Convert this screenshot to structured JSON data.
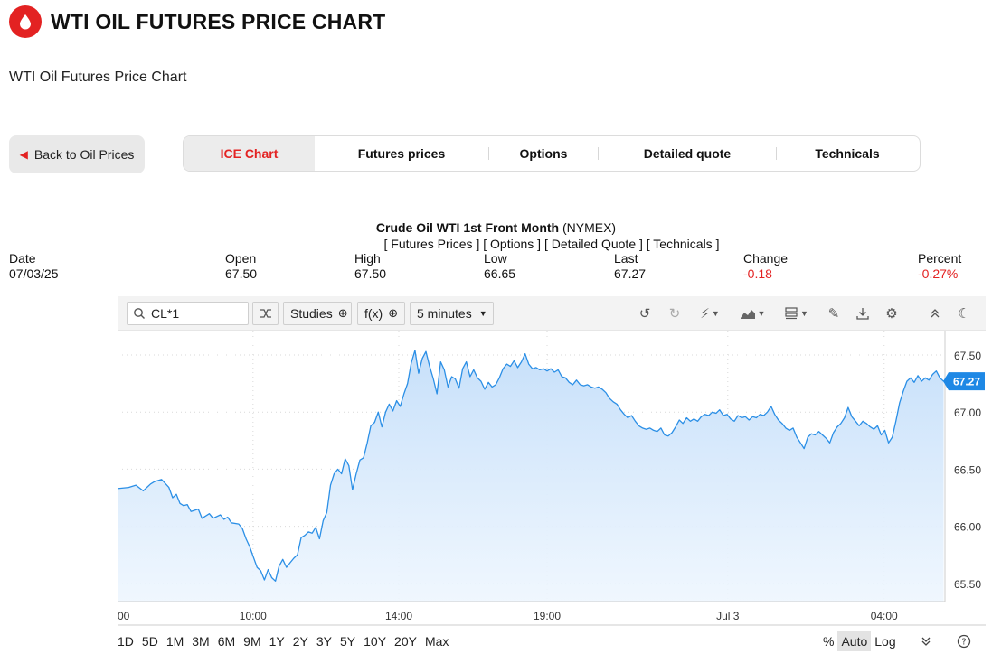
{
  "header": {
    "title": "WTI OIL FUTURES PRICE CHART",
    "subtitle": "WTI Oil Futures Price Chart"
  },
  "back_button": {
    "label": "Back to Oil Prices"
  },
  "tabs": [
    {
      "label": "ICE Chart",
      "active": true
    },
    {
      "label": "Futures prices",
      "active": false
    },
    {
      "label": "Options",
      "active": false
    },
    {
      "label": "Detailed quote",
      "active": false
    },
    {
      "label": "Technicals",
      "active": false
    }
  ],
  "instrument": {
    "name": "Crude Oil WTI 1st Front Month",
    "exchange": "(NYMEX)"
  },
  "links": [
    "[ Futures Prices ]",
    "[ Options ]",
    "[ Detailed Quote ]",
    "[ Technicals ]"
  ],
  "quote": {
    "date": {
      "label": "Date",
      "value": "07/03/25"
    },
    "open": {
      "label": "Open",
      "value": "67.50"
    },
    "high": {
      "label": "High",
      "value": "67.50"
    },
    "low": {
      "label": "Low",
      "value": "66.65"
    },
    "last": {
      "label": "Last",
      "value": "67.27"
    },
    "change": {
      "label": "Change",
      "value": "-0.18"
    },
    "percent": {
      "label": "Percent",
      "value": "-0.27%"
    }
  },
  "toolbar": {
    "symbol": "CL*1",
    "studies_label": "Studies",
    "fx_label": "f(x)",
    "interval_label": "5 minutes",
    "icons": [
      "undo-icon",
      "redo-icon",
      "lightning-icon",
      "chart-type-icon",
      "layout-icon",
      "draw-icon",
      "download-icon",
      "settings-icon",
      "collapse-icon",
      "dark-mode-icon"
    ]
  },
  "range_buttons": [
    "1D",
    "5D",
    "1M",
    "3M",
    "6M",
    "9M",
    "1Y",
    "2Y",
    "3Y",
    "5Y",
    "10Y",
    "20Y",
    "Max"
  ],
  "scale_buttons": [
    {
      "label": "%",
      "active": false
    },
    {
      "label": "Auto",
      "active": true
    },
    {
      "label": "Log",
      "active": false
    }
  ],
  "colors": {
    "accent": "#e32222",
    "line": "#2b8fe6",
    "fill": "#cfe4fa",
    "badge": "#1e88e5"
  },
  "chart_data": {
    "type": "area",
    "title": "Crude Oil WTI 1st Front Month",
    "x_tick_labels": [
      "00",
      "10:00",
      "14:00",
      "19:00",
      "Jul 3",
      "04:00"
    ],
    "x_tick_positions": [
      0,
      36.9,
      76.6,
      117.0,
      166.2,
      208.8
    ],
    "y_ticks": [
      65.5,
      66.0,
      66.5,
      67.0,
      67.5
    ],
    "y_tick_labels": [
      "65.50",
      "66.00",
      "66.50",
      "67.00",
      "67.50"
    ],
    "ylim": [
      65.4,
      67.6
    ],
    "xlim": [
      0,
      230
    ],
    "last_value_label": "67.27",
    "last_value": 67.27,
    "series": [
      {
        "values": [
          [
            0,
            66.33
          ],
          [
            3,
            66.34
          ],
          [
            5,
            66.36
          ],
          [
            7,
            66.31
          ],
          [
            9,
            66.37
          ],
          [
            10,
            66.39
          ],
          [
            12,
            66.41
          ],
          [
            14,
            66.34
          ],
          [
            15,
            66.25
          ],
          [
            16,
            66.28
          ],
          [
            17,
            66.2
          ],
          [
            18,
            66.18
          ],
          [
            19,
            66.19
          ],
          [
            20,
            66.13
          ],
          [
            22,
            66.15
          ],
          [
            23,
            66.07
          ],
          [
            25,
            66.11
          ],
          [
            26,
            66.07
          ],
          [
            28,
            66.1
          ],
          [
            29,
            66.06
          ],
          [
            30,
            66.08
          ],
          [
            31,
            66.03
          ],
          [
            33,
            66.02
          ],
          [
            34,
            65.98
          ],
          [
            35,
            65.89
          ],
          [
            36,
            65.82
          ],
          [
            37,
            65.73
          ],
          [
            38,
            65.64
          ],
          [
            39,
            65.61
          ],
          [
            40,
            65.53
          ],
          [
            41,
            65.62
          ],
          [
            42,
            65.55
          ],
          [
            43,
            65.52
          ],
          [
            44,
            65.65
          ],
          [
            45,
            65.71
          ],
          [
            46,
            65.64
          ],
          [
            47,
            65.68
          ],
          [
            48,
            65.72
          ],
          [
            49,
            65.75
          ],
          [
            50,
            65.9
          ],
          [
            51,
            65.92
          ],
          [
            52,
            65.95
          ],
          [
            53,
            65.94
          ],
          [
            54,
            65.99
          ],
          [
            55,
            65.89
          ],
          [
            56,
            66.05
          ],
          [
            57,
            66.12
          ],
          [
            58,
            66.36
          ],
          [
            59,
            66.46
          ],
          [
            60,
            66.5
          ],
          [
            61,
            66.46
          ],
          [
            62,
            66.59
          ],
          [
            63,
            66.53
          ],
          [
            64,
            66.32
          ],
          [
            65,
            66.46
          ],
          [
            66,
            66.58
          ],
          [
            67,
            66.6
          ],
          [
            68,
            66.73
          ],
          [
            69,
            66.88
          ],
          [
            70,
            66.91
          ],
          [
            71,
            67.0
          ],
          [
            72,
            66.87
          ],
          [
            73,
            67.0
          ],
          [
            74,
            67.07
          ],
          [
            75,
            67.01
          ],
          [
            76,
            67.1
          ],
          [
            77,
            67.05
          ],
          [
            78,
            67.16
          ],
          [
            79,
            67.25
          ],
          [
            80,
            67.43
          ],
          [
            81,
            67.54
          ],
          [
            82,
            67.34
          ],
          [
            83,
            67.47
          ],
          [
            84,
            67.53
          ],
          [
            85,
            67.4
          ],
          [
            86,
            67.29
          ],
          [
            87,
            67.16
          ],
          [
            88,
            67.44
          ],
          [
            89,
            67.37
          ],
          [
            90,
            67.22
          ],
          [
            91,
            67.31
          ],
          [
            92,
            67.29
          ],
          [
            93,
            67.21
          ],
          [
            94,
            67.38
          ],
          [
            95,
            67.44
          ],
          [
            96,
            67.31
          ],
          [
            97,
            67.37
          ],
          [
            98,
            67.3
          ],
          [
            99,
            67.27
          ],
          [
            100,
            67.2
          ],
          [
            101,
            67.26
          ],
          [
            102,
            67.22
          ],
          [
            103,
            67.24
          ],
          [
            104,
            67.3
          ],
          [
            105,
            67.38
          ],
          [
            106,
            67.42
          ],
          [
            107,
            67.4
          ],
          [
            108,
            67.45
          ],
          [
            109,
            67.39
          ],
          [
            110,
            67.44
          ],
          [
            111,
            67.51
          ],
          [
            112,
            67.42
          ],
          [
            113,
            67.38
          ],
          [
            114,
            67.39
          ],
          [
            115,
            67.37
          ],
          [
            116,
            67.38
          ],
          [
            117,
            67.36
          ],
          [
            118,
            67.38
          ],
          [
            119,
            67.35
          ],
          [
            120,
            67.37
          ],
          [
            121,
            67.31
          ],
          [
            122,
            67.3
          ],
          [
            123,
            67.26
          ],
          [
            124,
            67.24
          ],
          [
            125,
            67.28
          ],
          [
            126,
            67.24
          ],
          [
            127,
            67.23
          ],
          [
            128,
            67.24
          ],
          [
            129,
            67.22
          ],
          [
            130,
            67.21
          ],
          [
            131,
            67.22
          ],
          [
            132,
            67.2
          ],
          [
            133,
            67.17
          ],
          [
            134,
            67.12
          ],
          [
            135,
            67.09
          ],
          [
            136,
            67.07
          ],
          [
            137,
            67.02
          ],
          [
            138,
            66.98
          ],
          [
            139,
            66.95
          ],
          [
            140,
            66.97
          ],
          [
            141,
            66.92
          ],
          [
            142,
            66.88
          ],
          [
            143,
            66.86
          ],
          [
            144,
            66.85
          ],
          [
            145,
            66.86
          ],
          [
            146,
            66.84
          ],
          [
            147,
            66.83
          ],
          [
            148,
            66.86
          ],
          [
            149,
            66.8
          ],
          [
            150,
            66.79
          ],
          [
            151,
            66.82
          ],
          [
            152,
            66.87
          ],
          [
            153,
            66.93
          ],
          [
            154,
            66.9
          ],
          [
            155,
            66.95
          ],
          [
            156,
            66.92
          ],
          [
            157,
            66.94
          ],
          [
            158,
            66.92
          ],
          [
            159,
            66.96
          ],
          [
            160,
            66.98
          ],
          [
            161,
            66.97
          ],
          [
            162,
            67.0
          ],
          [
            163,
            66.99
          ],
          [
            164,
            67.02
          ],
          [
            165,
            66.97
          ],
          [
            166,
            66.98
          ],
          [
            167,
            66.94
          ],
          [
            168,
            66.92
          ],
          [
            169,
            66.97
          ],
          [
            170,
            66.95
          ],
          [
            171,
            66.96
          ],
          [
            172,
            66.93
          ],
          [
            173,
            66.96
          ],
          [
            174,
            66.95
          ],
          [
            175,
            66.98
          ],
          [
            176,
            66.97
          ],
          [
            177,
            67.0
          ],
          [
            178,
            67.05
          ],
          [
            179,
            66.98
          ],
          [
            180,
            66.93
          ],
          [
            181,
            66.9
          ],
          [
            182,
            66.86
          ],
          [
            183,
            66.84
          ],
          [
            184,
            66.86
          ],
          [
            185,
            66.78
          ],
          [
            186,
            66.73
          ],
          [
            187,
            66.68
          ],
          [
            188,
            66.78
          ],
          [
            189,
            66.81
          ],
          [
            190,
            66.8
          ],
          [
            191,
            66.83
          ],
          [
            192,
            66.8
          ],
          [
            193,
            66.77
          ],
          [
            194,
            66.73
          ],
          [
            195,
            66.82
          ],
          [
            196,
            66.87
          ],
          [
            197,
            66.9
          ],
          [
            198,
            66.95
          ],
          [
            199,
            67.04
          ],
          [
            200,
            66.96
          ],
          [
            201,
            66.92
          ],
          [
            202,
            66.88
          ],
          [
            203,
            66.92
          ],
          [
            204,
            66.9
          ],
          [
            205,
            66.87
          ],
          [
            206,
            66.85
          ],
          [
            207,
            66.88
          ],
          [
            208,
            66.8
          ],
          [
            209,
            66.84
          ],
          [
            210,
            66.73
          ],
          [
            211,
            66.78
          ],
          [
            212,
            66.92
          ],
          [
            213,
            67.08
          ],
          [
            214,
            67.18
          ],
          [
            215,
            67.27
          ],
          [
            216,
            67.3
          ],
          [
            217,
            67.26
          ],
          [
            218,
            67.32
          ],
          [
            219,
            67.27
          ],
          [
            220,
            67.3
          ],
          [
            221,
            67.28
          ],
          [
            222,
            67.33
          ],
          [
            223,
            67.36
          ],
          [
            224,
            67.3
          ],
          [
            225,
            67.27
          ]
        ]
      }
    ]
  }
}
